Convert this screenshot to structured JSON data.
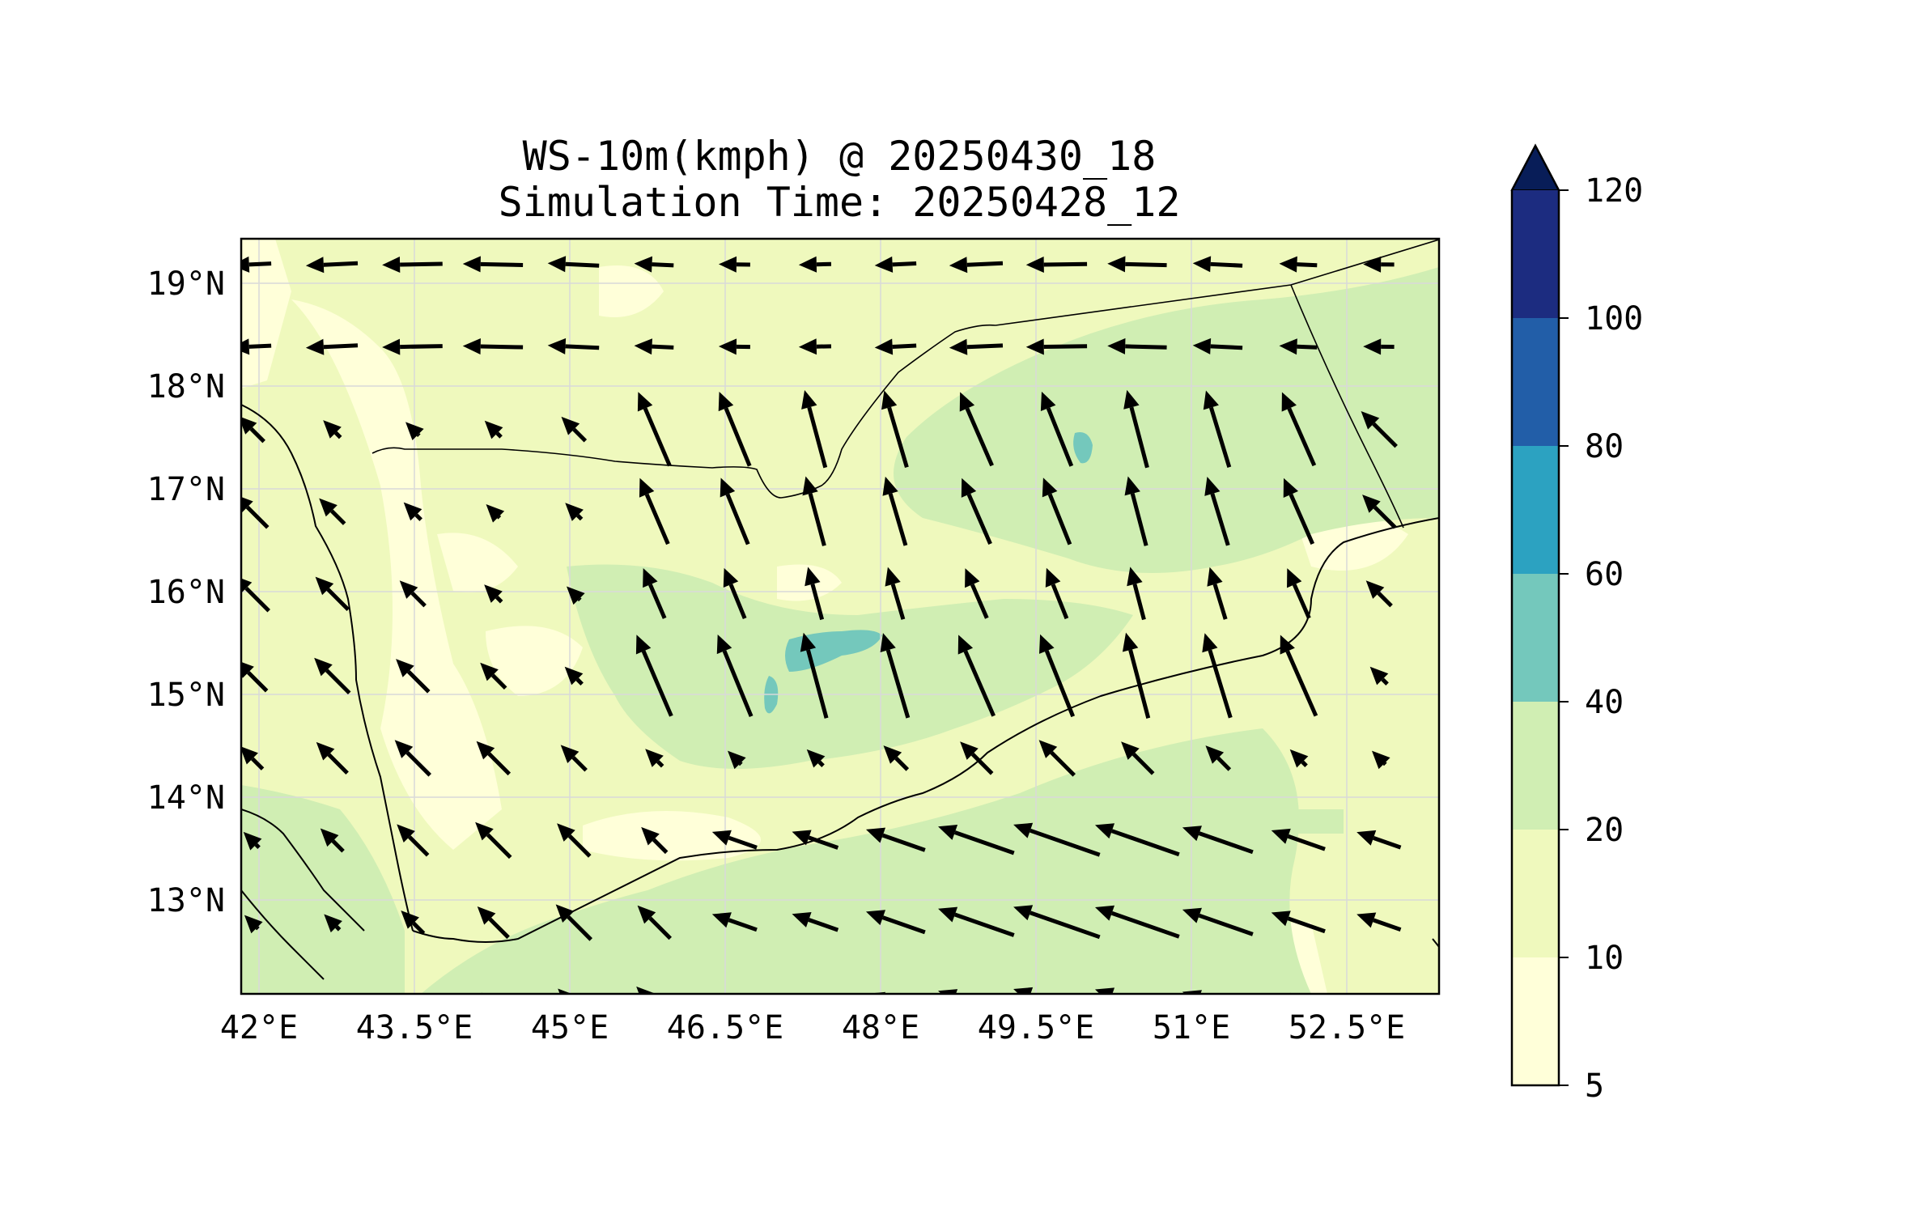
{
  "title": {
    "line1": "WS-10m(kmph) @ 20250430_18",
    "line2": "Simulation Time: 20250428_12"
  },
  "map": {
    "lon_ticks": [
      "42°E",
      "43.5°E",
      "45°E",
      "46.5°E",
      "48°E",
      "49.5°E",
      "51°E",
      "52.5°E"
    ],
    "lat_ticks": [
      "19°N",
      "18°N",
      "17°N",
      "16°N",
      "15°N",
      "14°N",
      "13°N"
    ],
    "lon_range": [
      41.9,
      53.8
    ],
    "lat_range": [
      12.1,
      19.45
    ],
    "colors": {
      "frame": "#000000",
      "coast": "#000000",
      "grid": "#d9d9d9",
      "arrow": "#000000"
    },
    "arrow_grid": {
      "lons": [
        42.0,
        42.8,
        43.6,
        44.4,
        45.2,
        46.0,
        46.8,
        47.6,
        48.4,
        49.2,
        50.0,
        50.8,
        51.6,
        52.4,
        53.2
      ],
      "lats": [
        19.2,
        18.4,
        17.6,
        16.8,
        16.0,
        15.2,
        14.4,
        13.6,
        12.8,
        12.0
      ]
    }
  },
  "colorbar": {
    "levels": [
      "120",
      "100",
      "80",
      "60",
      "40",
      "20",
      "10",
      "5"
    ],
    "bins": [
      {
        "from": 5,
        "to": 10,
        "color": "#ffffd9"
      },
      {
        "from": 10,
        "to": 20,
        "color": "#eff9bd"
      },
      {
        "from": 20,
        "to": 40,
        "color": "#d0eeb3"
      },
      {
        "from": 40,
        "to": 60,
        "color": "#74c8bc"
      },
      {
        "from": 60,
        "to": 80,
        "color": "#2ca2c1"
      },
      {
        "from": 80,
        "to": 100,
        "color": "#225ea8"
      },
      {
        "from": 100,
        "to": 120,
        "color": "#1c2c80"
      }
    ],
    "extend_color": "#081d58"
  }
}
